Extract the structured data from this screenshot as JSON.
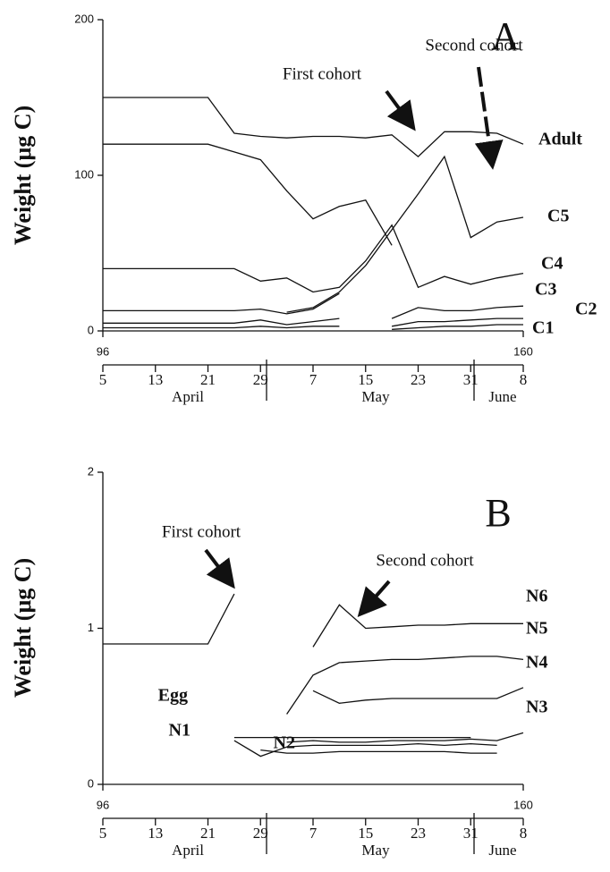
{
  "chart_data": [
    {
      "type": "line",
      "panel_label": "A",
      "y_label": "Weight (μg C)",
      "annotations": [
        "First cohort",
        "Second cohort"
      ],
      "x": [
        96,
        100,
        104,
        108,
        112,
        116,
        120,
        124,
        128,
        132,
        136,
        140,
        144,
        148,
        152,
        156,
        160
      ],
      "xlim": [
        96,
        160
      ],
      "xticks": [
        96,
        160
      ],
      "ylim": [
        0,
        200
      ],
      "yticks": [
        0,
        100,
        200
      ],
      "date_ticks": [
        {
          "value": 96,
          "label": "5"
        },
        {
          "value": 104,
          "label": "13"
        },
        {
          "value": 112,
          "label": "21"
        },
        {
          "value": 120,
          "label": "29"
        },
        {
          "value": 128,
          "label": "7"
        },
        {
          "value": 136,
          "label": "15"
        },
        {
          "value": 144,
          "label": "23"
        },
        {
          "value": 152,
          "label": "31"
        },
        {
          "value": 160,
          "label": "8"
        }
      ],
      "months": [
        "April",
        "May",
        "June"
      ],
      "series": [
        {
          "name": "Adult",
          "color": "#111",
          "values": [
            150,
            150,
            150,
            150,
            150,
            127,
            125,
            124,
            125,
            125,
            124,
            126,
            112,
            128,
            128,
            127,
            120
          ]
        },
        {
          "color": "#111",
          "values": [
            120,
            120,
            120,
            120,
            120,
            115,
            110,
            90,
            72,
            80,
            84,
            55,
            null,
            null,
            null,
            null,
            null
          ]
        },
        {
          "name": "C5",
          "color": "#111",
          "values": [
            null,
            null,
            null,
            null,
            null,
            null,
            null,
            12,
            15,
            25,
            42,
            65,
            88,
            112,
            60,
            70,
            73
          ]
        },
        {
          "name": "C4",
          "color": "#111",
          "values": [
            40,
            40,
            40,
            40,
            40,
            40,
            32,
            34,
            25,
            28,
            45,
            68,
            28,
            35,
            30,
            34,
            37
          ]
        },
        {
          "name": "C3",
          "color": "#111",
          "values": [
            13,
            13,
            13,
            13,
            13,
            13,
            14,
            11,
            14,
            24,
            null,
            8,
            15,
            13,
            13,
            15,
            16
          ]
        },
        {
          "name": "C2",
          "color": "#111",
          "values": [
            5,
            5,
            5,
            5,
            5,
            5,
            7,
            4,
            6,
            8,
            null,
            3,
            6,
            6,
            7,
            8,
            8
          ]
        },
        {
          "name": "C1",
          "color": "#111",
          "values": [
            2,
            2,
            2,
            2,
            2,
            2,
            3,
            2,
            3,
            3,
            null,
            1,
            2,
            3,
            3,
            4,
            4
          ]
        }
      ]
    },
    {
      "type": "line",
      "panel_label": "B",
      "y_label": "Weight (μg C)",
      "annotations": [
        "First cohort",
        "Second cohort"
      ],
      "x": [
        96,
        100,
        104,
        108,
        112,
        116,
        120,
        124,
        128,
        132,
        136,
        140,
        144,
        148,
        152,
        156,
        160
      ],
      "xlim": [
        96,
        160
      ],
      "xticks": [
        96,
        160
      ],
      "ylim": [
        0,
        2
      ],
      "yticks": [
        0,
        1,
        2
      ],
      "date_ticks": [
        {
          "value": 96,
          "label": "5"
        },
        {
          "value": 104,
          "label": "13"
        },
        {
          "value": 112,
          "label": "21"
        },
        {
          "value": 120,
          "label": "29"
        },
        {
          "value": 128,
          "label": "7"
        },
        {
          "value": 136,
          "label": "15"
        },
        {
          "value": 144,
          "label": "23"
        },
        {
          "value": 152,
          "label": "31"
        },
        {
          "value": 160,
          "label": "8"
        }
      ],
      "months": [
        "April",
        "May",
        "June"
      ],
      "series": [
        {
          "color": "#111",
          "values": [
            0.9,
            0.9,
            0.9,
            0.9,
            0.9,
            1.22,
            null,
            null,
            null,
            null,
            null,
            null,
            null,
            null,
            null,
            null,
            null
          ]
        },
        {
          "name": "N6",
          "color": "#111",
          "values": [
            null,
            null,
            null,
            null,
            null,
            null,
            null,
            null,
            0.88,
            1.15,
            1.0,
            1.01,
            1.02,
            1.02,
            1.03,
            1.03,
            1.03
          ]
        },
        {
          "name": "N5",
          "color": "#111",
          "values": [
            null,
            null,
            null,
            null,
            null,
            null,
            null,
            0.45,
            0.7,
            0.78,
            0.79,
            0.8,
            0.8,
            0.81,
            0.82,
            0.82,
            0.8
          ]
        },
        {
          "name": "N4",
          "color": "#111",
          "values": [
            null,
            null,
            null,
            null,
            null,
            null,
            null,
            null,
            0.6,
            0.52,
            0.54,
            0.55,
            0.55,
            0.55,
            0.55,
            0.55,
            0.62
          ]
        },
        {
          "name": "N3",
          "color": "#111",
          "values": [
            null,
            null,
            null,
            null,
            null,
            null,
            null,
            0.27,
            0.28,
            0.27,
            0.27,
            0.28,
            0.28,
            0.28,
            0.29,
            0.28,
            0.33
          ]
        },
        {
          "name": "Egg",
          "color": "#111",
          "values": [
            null,
            null,
            null,
            null,
            null,
            0.3,
            0.3,
            0.3,
            0.3,
            0.3,
            0.3,
            0.3,
            0.3,
            0.3,
            0.3,
            null,
            null
          ]
        },
        {
          "name": "N1",
          "color": "#111",
          "values": [
            null,
            null,
            null,
            null,
            null,
            0.28,
            0.18,
            0.24,
            0.25,
            0.25,
            0.25,
            0.25,
            0.26,
            0.25,
            0.26,
            0.25,
            null
          ]
        },
        {
          "name": "N2",
          "color": "#111",
          "values": [
            null,
            null,
            null,
            null,
            null,
            null,
            0.22,
            0.2,
            0.2,
            0.21,
            0.21,
            0.21,
            0.21,
            0.21,
            0.2,
            0.2,
            null
          ]
        }
      ]
    }
  ]
}
